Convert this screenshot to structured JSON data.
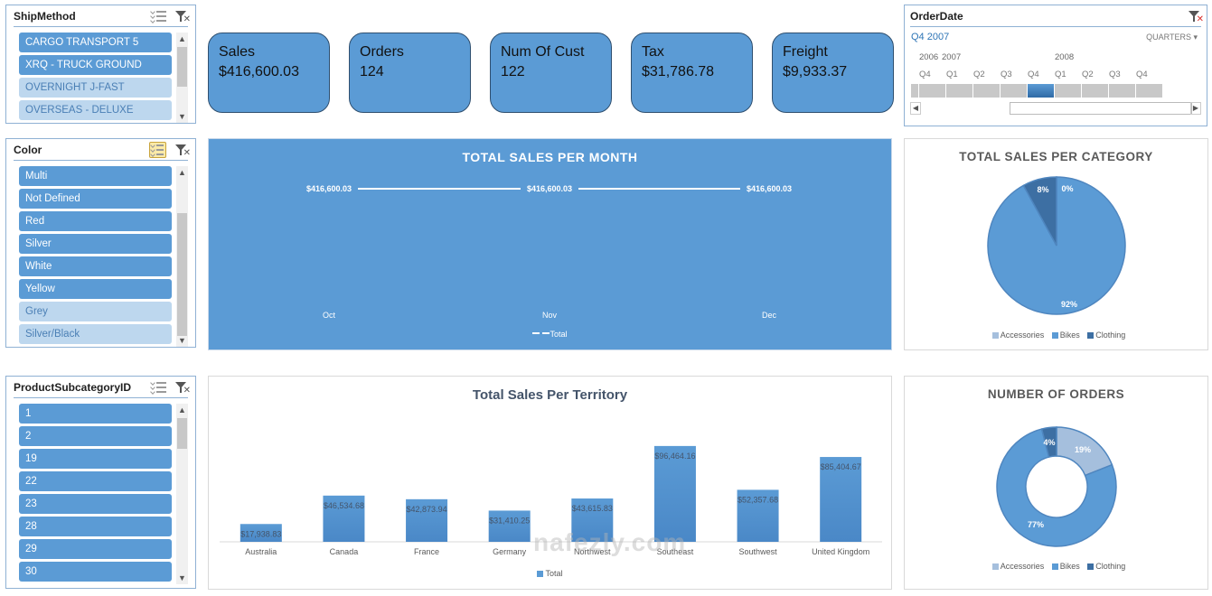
{
  "slicers": {
    "ship_method": {
      "title": "ShipMethod",
      "items": [
        {
          "label": "CARGO TRANSPORT 5",
          "selected": true
        },
        {
          "label": "XRQ - TRUCK GROUND",
          "selected": true
        },
        {
          "label": "OVERNIGHT J-FAST",
          "selected": false
        },
        {
          "label": "OVERSEAS - DELUXE",
          "selected": false
        }
      ]
    },
    "color": {
      "title": "Color",
      "items": [
        {
          "label": "Multi",
          "selected": true
        },
        {
          "label": "Not Defined",
          "selected": true
        },
        {
          "label": "Red",
          "selected": true
        },
        {
          "label": "Silver",
          "selected": true
        },
        {
          "label": "White",
          "selected": true
        },
        {
          "label": "Yellow",
          "selected": true
        },
        {
          "label": "Grey",
          "selected": false
        },
        {
          "label": "Silver/Black",
          "selected": false
        }
      ]
    },
    "product_subcategory": {
      "title": "ProductSubcategoryID",
      "items": [
        {
          "label": "1",
          "selected": true
        },
        {
          "label": "2",
          "selected": true
        },
        {
          "label": "19",
          "selected": true
        },
        {
          "label": "22",
          "selected": true
        },
        {
          "label": "23",
          "selected": true
        },
        {
          "label": "28",
          "selected": true
        },
        {
          "label": "29",
          "selected": true
        },
        {
          "label": "30",
          "selected": true
        }
      ]
    }
  },
  "kpis": [
    {
      "label": "Sales",
      "value": "$416,600.03"
    },
    {
      "label": "Orders",
      "value": "124"
    },
    {
      "label": "Num Of Cust",
      "value": "122"
    },
    {
      "label": "Tax",
      "value": "$31,786.78"
    },
    {
      "label": "Freight",
      "value": "$9,933.37"
    }
  ],
  "timeline": {
    "title": "OrderDate",
    "selection": "Q4 2007",
    "level": "QUARTERS",
    "years": [
      "2006",
      "2007",
      "2008"
    ],
    "quarters": [
      "Q4",
      "Q1",
      "Q2",
      "Q3",
      "Q4",
      "Q1",
      "Q2",
      "Q3",
      "Q4"
    ],
    "selected_index": 4
  },
  "colors": {
    "accent": "#5b9bd5",
    "accessories": "#a5bfdd",
    "bikes": "#5b9bd5",
    "clothing": "#3d6fa3"
  },
  "chart_data": [
    {
      "type": "line",
      "title": "TOTAL SALES PER MONTH",
      "categories": [
        "Oct",
        "Nov",
        "Dec"
      ],
      "series": [
        {
          "name": "Total",
          "values": [
            416600.03,
            416600.03,
            416600.03
          ]
        }
      ],
      "data_labels": [
        "$416,600.03",
        "$416,600.03",
        "$416,600.03"
      ],
      "legend": "bottom"
    },
    {
      "type": "pie",
      "title": "TOTAL SALES PER CATEGORY",
      "categories": [
        "Accessories",
        "Bikes",
        "Clothing"
      ],
      "values": [
        0,
        92,
        8
      ],
      "data_labels": [
        "0%",
        "92%",
        "8%"
      ],
      "legend": "bottom"
    },
    {
      "type": "bar",
      "title": "Total Sales Per Territory",
      "categories": [
        "Australia",
        "Canada",
        "France",
        "Germany",
        "Northwest",
        "Southeast",
        "Southwest",
        "United Kingdom"
      ],
      "series": [
        {
          "name": "Total",
          "values": [
            17938.83,
            46534.68,
            42873.94,
            31410.25,
            43615.83,
            96464.16,
            52357.68,
            85404.67
          ]
        }
      ],
      "data_labels": [
        "$17,938.83",
        "$46,534.68",
        "$42,873.94",
        "$31,410.25",
        "$43,615.83",
        "$96,464.16",
        "$52,357.68",
        "$85,404.67"
      ],
      "ylim": [
        0,
        100000
      ],
      "legend": "bottom"
    },
    {
      "type": "pie",
      "title": "NUMBER OF ORDERS",
      "categories": [
        "Accessories",
        "Bikes",
        "Clothing"
      ],
      "values": [
        19,
        77,
        4
      ],
      "data_labels": [
        "19%",
        "77%",
        "4%"
      ],
      "legend": "bottom"
    }
  ],
  "watermark": "nafezly.com"
}
